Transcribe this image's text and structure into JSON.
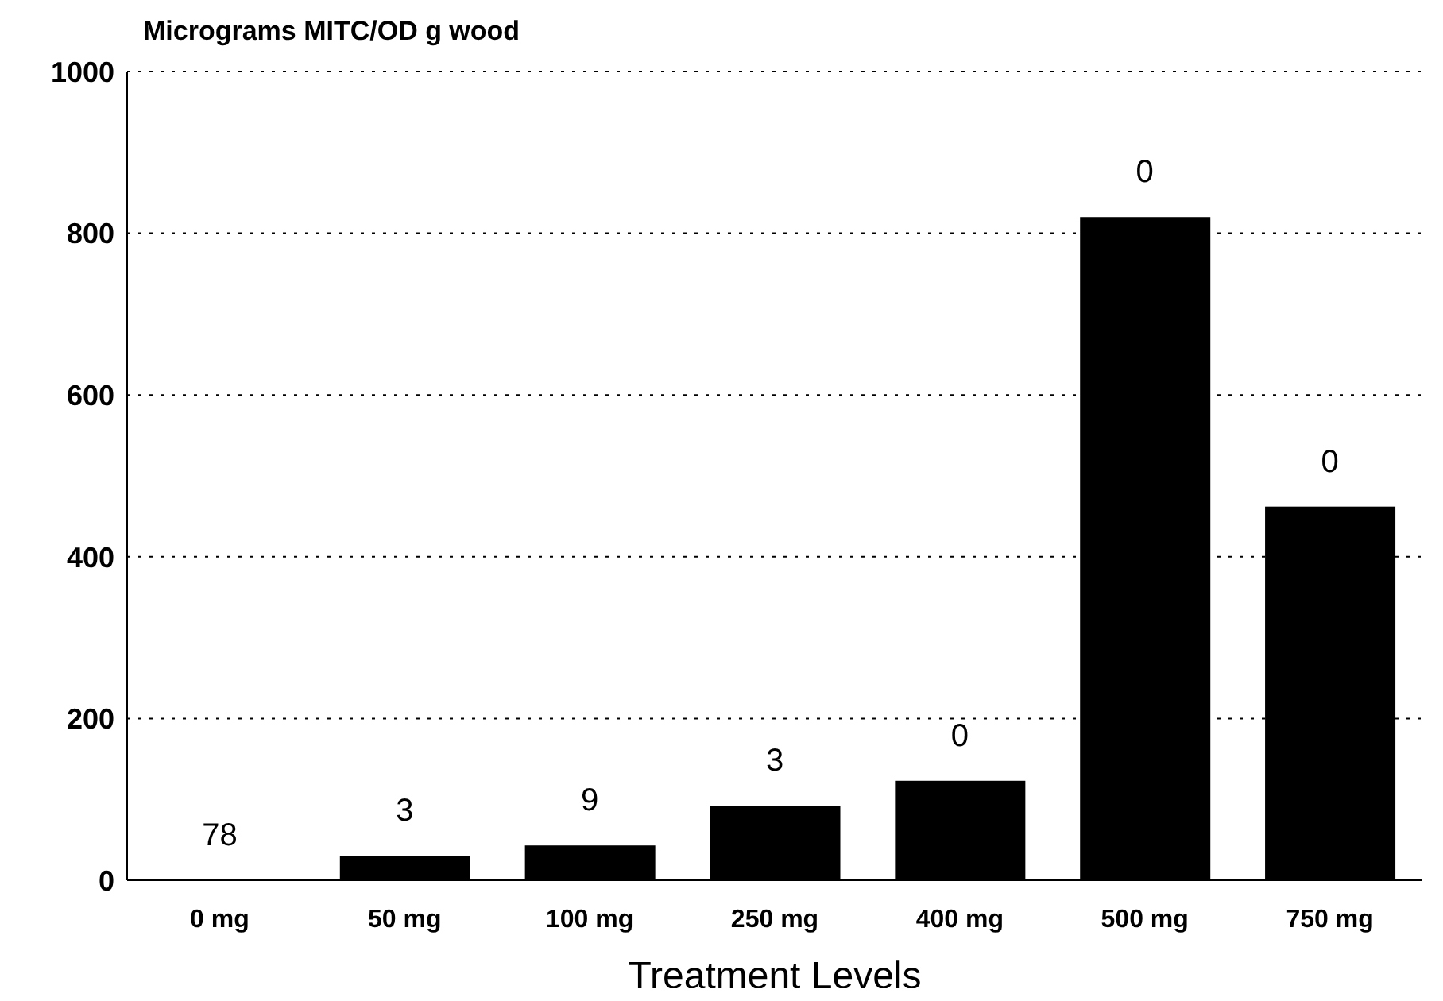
{
  "chart_data": {
    "type": "bar",
    "ylabel": "Micrograms MITC/OD g wood",
    "xlabel": "Treatment Levels",
    "categories": [
      "0 mg",
      "50 mg",
      "100 mg",
      "250 mg",
      "400 mg",
      "500 mg",
      "750 mg"
    ],
    "values": [
      0,
      30,
      43,
      92,
      123,
      820,
      462
    ],
    "annotations": [
      {
        "text": "78",
        "x": "0 mg",
        "y": 0
      },
      {
        "text": "3",
        "x": "50 mg",
        "y": 30
      },
      {
        "text": "9",
        "x": "100 mg",
        "y": 43
      },
      {
        "text": "3",
        "x": "250 mg",
        "y": 92
      },
      {
        "text": "0",
        "x": "400 mg",
        "y": 123
      },
      {
        "text": "0",
        "x": "500 mg",
        "y": 820
      },
      {
        "text": "0",
        "x": "750 mg",
        "y": 462
      }
    ],
    "color": "#000000",
    "ylim": [
      0,
      1000
    ],
    "yticks": [
      0,
      200,
      400,
      600,
      800,
      1000
    ],
    "grid": "y"
  }
}
